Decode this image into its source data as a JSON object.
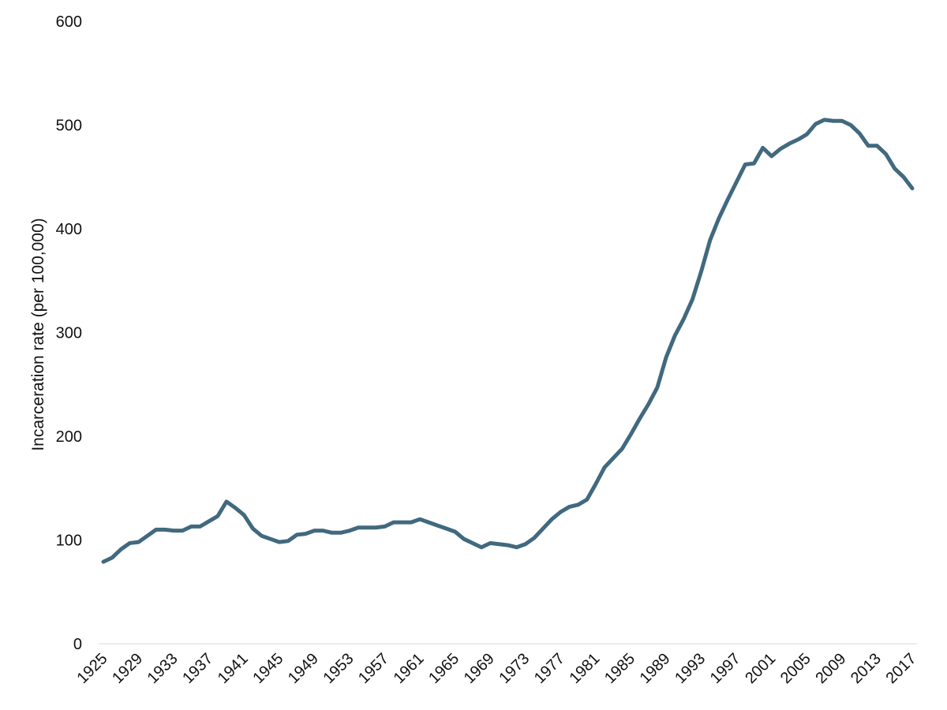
{
  "chart_data": {
    "type": "line",
    "title": "",
    "xlabel": "",
    "ylabel": "Incarceration rate (per 100,000)",
    "xlim": [
      1925,
      2017
    ],
    "ylim": [
      0,
      600
    ],
    "yticks": [
      0,
      100,
      200,
      300,
      400,
      500,
      600
    ],
    "xticks": [
      1925,
      1929,
      1933,
      1937,
      1941,
      1945,
      1949,
      1953,
      1957,
      1961,
      1965,
      1969,
      1973,
      1977,
      1981,
      1985,
      1989,
      1993,
      1997,
      2001,
      2005,
      2009,
      2013,
      2017
    ],
    "grid": false,
    "legend": "none",
    "line_color": "#41697f",
    "series": [
      {
        "x": [
          1925,
          1926,
          1927,
          1928,
          1929,
          1930,
          1931,
          1932,
          1933,
          1934,
          1935,
          1936,
          1937,
          1938,
          1939,
          1940,
          1941,
          1942,
          1943,
          1944,
          1945,
          1946,
          1947,
          1948,
          1949,
          1950,
          1951,
          1952,
          1953,
          1954,
          1955,
          1956,
          1957,
          1958,
          1959,
          1960,
          1961,
          1962,
          1963,
          1964,
          1965,
          1966,
          1967,
          1968,
          1969,
          1970,
          1971,
          1972,
          1973,
          1974,
          1975,
          1976,
          1977,
          1978,
          1979,
          1980,
          1981,
          1982,
          1983,
          1984,
          1985,
          1986,
          1987,
          1988,
          1989,
          1990,
          1991,
          1992,
          1993,
          1994,
          1995,
          1996,
          1997,
          1998,
          1999,
          2000,
          2001,
          2002,
          2003,
          2004,
          2005,
          2006,
          2007,
          2008,
          2009,
          2010,
          2011,
          2012,
          2013,
          2014,
          2015,
          2016,
          2017
        ],
        "values": [
          79,
          83,
          91,
          97,
          98,
          104,
          110,
          110,
          109,
          109,
          113,
          113,
          118,
          123,
          137,
          131,
          124,
          111,
          104,
          101,
          98,
          99,
          105,
          106,
          109,
          109,
          107,
          107,
          109,
          112,
          112,
          112,
          113,
          117,
          117,
          117,
          120,
          117,
          114,
          111,
          108,
          101,
          97,
          93,
          97,
          96,
          95,
          93,
          96,
          102,
          111,
          120,
          127,
          132,
          134,
          139,
          154,
          170,
          179,
          188,
          202,
          217,
          231,
          247,
          276,
          297,
          313,
          332,
          359,
          389,
          410,
          428,
          445,
          462,
          463,
          478,
          470,
          477,
          482,
          486,
          491,
          501,
          505,
          504,
          504,
          500,
          492,
          480,
          480,
          472,
          458,
          450,
          439
        ]
      }
    ]
  }
}
